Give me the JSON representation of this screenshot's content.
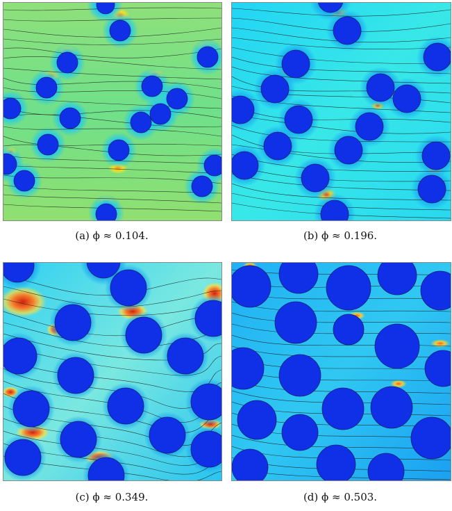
{
  "panels": [
    {
      "id": "a",
      "caption": "(a) ϕ ≈ 0.104.",
      "bg": "#7fe07a",
      "flow": "#7af0c0",
      "hot": "#ffd21a",
      "circle_color": "#1030e8"
    },
    {
      "id": "b",
      "caption": "(b) ϕ ≈ 0.196.",
      "bg": "#2de0f0",
      "flow": "#7ff0e8",
      "hot": "#ffb020",
      "circle_color": "#1030e8"
    },
    {
      "id": "c",
      "caption": "(c) ϕ ≈ 0.349.",
      "bg": "#22c8f0",
      "flow": "#9af0d8",
      "hot": "#e83018",
      "circle_color": "#1030e8"
    },
    {
      "id": "d",
      "caption": "(d) ϕ ≈ 0.503.",
      "bg": "#1a9cf2",
      "flow": "#3ad8f0",
      "hot": "#ffb020",
      "circle_color": "#1030e8"
    }
  ]
}
